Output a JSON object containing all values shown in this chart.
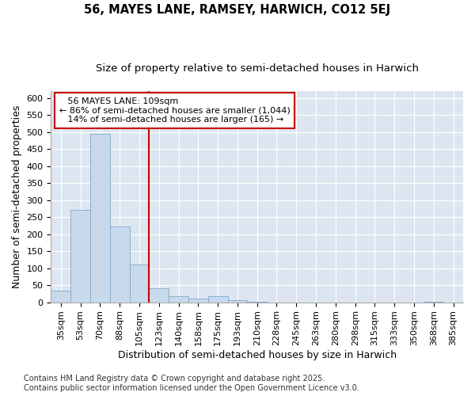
{
  "title": "56, MAYES LANE, RAMSEY, HARWICH, CO12 5EJ",
  "subtitle": "Size of property relative to semi-detached houses in Harwich",
  "xlabel": "Distribution of semi-detached houses by size in Harwich",
  "ylabel": "Number of semi-detached properties",
  "categories": [
    "35sqm",
    "53sqm",
    "70sqm",
    "88sqm",
    "105sqm",
    "123sqm",
    "140sqm",
    "158sqm",
    "175sqm",
    "193sqm",
    "210sqm",
    "228sqm",
    "245sqm",
    "263sqm",
    "280sqm",
    "298sqm",
    "315sqm",
    "333sqm",
    "350sqm",
    "368sqm",
    "385sqm"
  ],
  "values": [
    35,
    270,
    495,
    222,
    110,
    40,
    17,
    10,
    17,
    6,
    1,
    0,
    0,
    0,
    0,
    0,
    0,
    0,
    0,
    2,
    0
  ],
  "bar_color": "#c9d9ec",
  "bar_edge_color": "#7fa8cc",
  "vline_x": 4.5,
  "vline_color": "#cc0000",
  "annotation_box_color": "#cc0000",
  "property_label": "56 MAYES LANE: 109sqm",
  "pct_smaller": 86,
  "count_smaller": "1,044",
  "pct_larger": 14,
  "count_larger": 165,
  "background_color": "#dde6f0",
  "grid_color": "#ffffff",
  "ylim": [
    0,
    620
  ],
  "yticks": [
    0,
    50,
    100,
    150,
    200,
    250,
    300,
    350,
    400,
    450,
    500,
    550,
    600
  ],
  "footer_line1": "Contains HM Land Registry data © Crown copyright and database right 2025.",
  "footer_line2": "Contains public sector information licensed under the Open Government Licence v3.0.",
  "title_fontsize": 10.5,
  "subtitle_fontsize": 9.5,
  "label_fontsize": 9,
  "tick_fontsize": 8,
  "annotation_fontsize": 8,
  "footer_fontsize": 7
}
